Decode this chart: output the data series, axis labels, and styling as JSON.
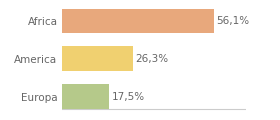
{
  "categories": [
    "Africa",
    "America",
    "Europa"
  ],
  "values": [
    56.1,
    26.3,
    17.5
  ],
  "labels": [
    "56,1%",
    "26,3%",
    "17,5%"
  ],
  "bar_colors": [
    "#e8a87c",
    "#f0d070",
    "#b5c98a"
  ],
  "background_color": "#ffffff",
  "xlim": [
    0,
    68
  ],
  "bar_height": 0.65,
  "label_fontsize": 7.5,
  "tick_fontsize": 7.5,
  "label_color": "#666666",
  "tick_color": "#666666",
  "bottom_line_color": "#cccccc"
}
